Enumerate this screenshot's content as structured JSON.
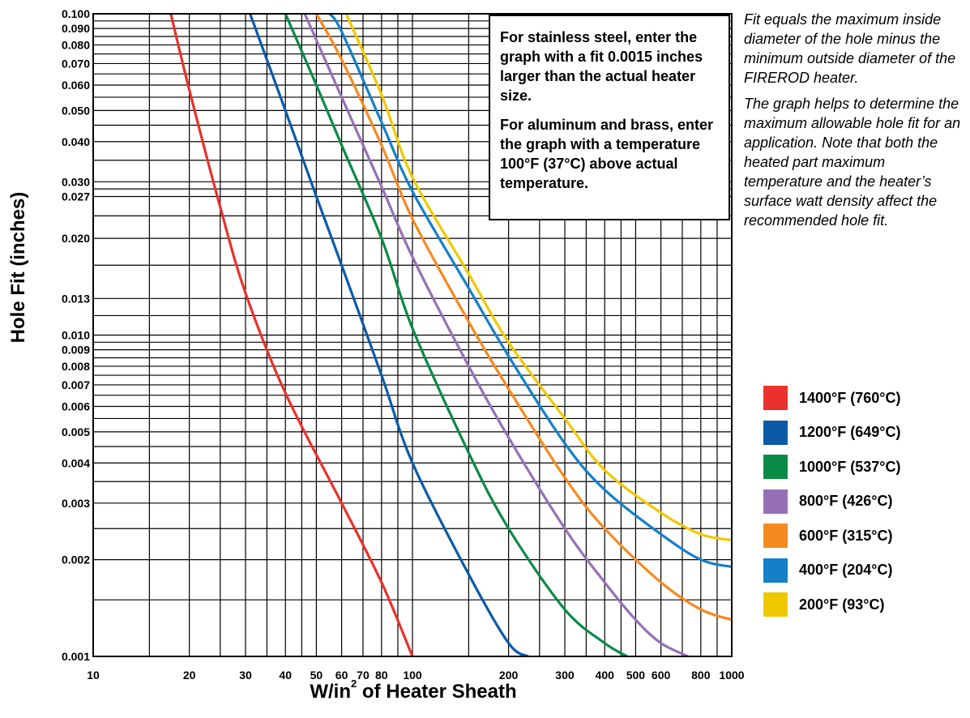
{
  "chart_data": {
    "type": "line",
    "xlabel_main": "W/in",
    "xlabel_sup": "2",
    "xlabel_rest": " of Heater Sheath",
    "ylabel": "Hole Fit (inches)",
    "x_scale": "log",
    "y_scale": "log",
    "xlim": [
      10,
      1000
    ],
    "ylim": [
      0.001,
      0.1
    ],
    "grid": true,
    "x_ticks": [
      10,
      20,
      30,
      40,
      50,
      60,
      70,
      80,
      100,
      200,
      300,
      400,
      500,
      600,
      800,
      1000
    ],
    "x_tick_labels": [
      "10",
      "20",
      "30",
      "40",
      "50",
      "60",
      "70",
      "80",
      "100",
      "200",
      "300",
      "400",
      "500",
      "600",
      "800",
      "1000"
    ],
    "x_minor_grid": [
      15,
      25,
      35,
      45,
      90,
      150,
      250,
      350,
      450,
      700,
      900
    ],
    "y_ticks": [
      0.001,
      0.002,
      0.003,
      0.004,
      0.005,
      0.006,
      0.007,
      0.008,
      0.009,
      0.01,
      0.013,
      0.02,
      0.027,
      0.03,
      0.04,
      0.05,
      0.06,
      0.07,
      0.08,
      0.09,
      0.1
    ],
    "y_tick_labels": [
      "0.001",
      "0.002",
      "0.003",
      "0.004",
      "0.005",
      "0.006",
      "0.007",
      "0.008",
      "0.009",
      "0.010",
      "0.013",
      "0.020",
      "0.027",
      "0.030",
      "0.040",
      "0.050",
      "0.060",
      "0.070",
      "0.080",
      "0.090",
      "0.100"
    ],
    "y_minor_grid": [
      0.0015,
      0.0025,
      0.0035,
      0.0045,
      0.0055,
      0.0065,
      0.0075,
      0.0085,
      0.0095,
      0.0115,
      0.0165,
      0.0235,
      0.0285,
      0.035,
      0.045,
      0.055,
      0.065,
      0.075,
      0.085,
      0.095
    ],
    "legend_position": "right",
    "series": [
      {
        "name": "1400°F (760°C)",
        "color": "#e8322b",
        "x": [
          17.5,
          20,
          25,
          30,
          40,
          60,
          80,
          100
        ],
        "y": [
          0.1,
          0.058,
          0.025,
          0.0135,
          0.0066,
          0.003,
          0.0017,
          0.001
        ]
      },
      {
        "name": "1200°F (649°C)",
        "color": "#0b5aa8",
        "x": [
          31,
          40,
          50,
          60,
          80,
          100,
          150,
          200,
          230
        ],
        "y": [
          0.1,
          0.05,
          0.027,
          0.0165,
          0.0075,
          0.004,
          0.0018,
          0.0011,
          0.001
        ]
      },
      {
        "name": "1000°F (537°C)",
        "color": "#0a8a45",
        "x": [
          40,
          50,
          60,
          80,
          100,
          150,
          200,
          300,
          400,
          470
        ],
        "y": [
          0.1,
          0.06,
          0.039,
          0.02,
          0.0105,
          0.0043,
          0.0025,
          0.0014,
          0.0011,
          0.001
        ]
      },
      {
        "name": "800°F (426°C)",
        "color": "#9670b5",
        "x": [
          46,
          60,
          80,
          100,
          150,
          200,
          300,
          400,
          500,
          600,
          730
        ],
        "y": [
          0.1,
          0.055,
          0.029,
          0.0175,
          0.008,
          0.0048,
          0.0025,
          0.0017,
          0.0013,
          0.0011,
          0.001
        ]
      },
      {
        "name": "600°F (315°C)",
        "color": "#f58a1f",
        "x": [
          50,
          60,
          80,
          100,
          150,
          200,
          300,
          400,
          600,
          800,
          1000
        ],
        "y": [
          0.1,
          0.072,
          0.039,
          0.023,
          0.011,
          0.0068,
          0.0036,
          0.0025,
          0.0017,
          0.0014,
          0.0013
        ]
      },
      {
        "name": "400°F (204°C)",
        "color": "#1480c8",
        "x": [
          55,
          60,
          80,
          100,
          150,
          200,
          300,
          400,
          600,
          800,
          1000
        ],
        "y": [
          0.1,
          0.088,
          0.046,
          0.028,
          0.014,
          0.0086,
          0.0046,
          0.0033,
          0.0024,
          0.002,
          0.0019
        ]
      },
      {
        "name": "200°F (93°C)",
        "color": "#f0c800",
        "x": [
          62,
          80,
          100,
          150,
          200,
          300,
          400,
          600,
          800,
          1000
        ],
        "y": [
          0.1,
          0.056,
          0.031,
          0.0155,
          0.0095,
          0.0055,
          0.0038,
          0.0028,
          0.0024,
          0.0023
        ]
      }
    ]
  },
  "notes": {
    "box_p1": "For stainless steel, enter the graph with a fit 0.0015 inches larger than the actual heater size.",
    "box_p2": "For aluminum and brass, enter the graph with a temperature 100°F (37°C) above actual temperature.",
    "side_p1": "Fit equals the maximum inside diameter of the hole minus the minimum outside diameter of the FIREROD heater.",
    "side_p2": "The graph helps to determine the maximum allowable hole fit for an application. Note that both the heated part maximum temperature and the heater’s surface watt density affect the recommended hole fit."
  }
}
